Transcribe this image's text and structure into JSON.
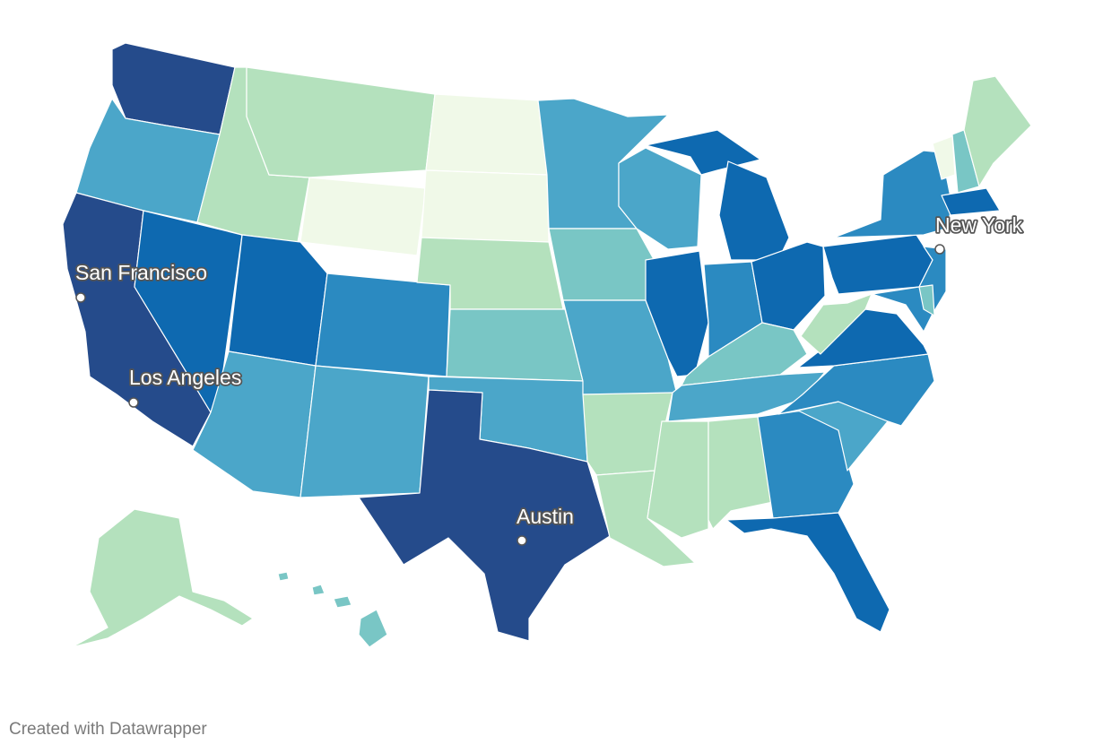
{
  "palette": {
    "c1": "#f0f9e8",
    "c2": "#b4e1bd",
    "c3": "#79c6c5",
    "c4": "#4ba6c9",
    "c5": "#2b8ac1",
    "c6": "#0e69b0",
    "c7": "#254b8b"
  },
  "states": {
    "WA": "c7",
    "OR": "c4",
    "CA": "c7",
    "NV": "c6",
    "ID": "c2",
    "MT": "c2",
    "WY": "c1",
    "UT": "c6",
    "AZ": "c4",
    "CO": "c5",
    "NM": "c4",
    "ND": "c1",
    "SD": "c1",
    "NE": "c2",
    "KS": "c3",
    "OK": "c4",
    "TX": "c7",
    "MN": "c4",
    "IA": "c3",
    "MO": "c4",
    "AR": "c2",
    "LA": "c2",
    "WI": "c4",
    "IL": "c6",
    "MI": "c6",
    "IN": "c5",
    "OH": "c6",
    "KY": "c3",
    "TN": "c4",
    "MS": "c2",
    "AL": "c2",
    "GA": "c5",
    "FL": "c6",
    "SC": "c4",
    "NC": "c5",
    "VA": "c6",
    "WV": "c2",
    "PA": "c6",
    "NY": "c5",
    "VT": "c1",
    "NH": "c3",
    "ME": "c2",
    "MA": "c6",
    "NJ": "c5",
    "MD": "c5",
    "DE": "c3",
    "AK": "c2",
    "HI": "c3"
  },
  "cities": {
    "san_francisco": "San Francisco",
    "los_angeles": "Los Angeles",
    "austin": "Austin",
    "new_york": "New York"
  },
  "footer": {
    "credit": "Created with Datawrapper"
  }
}
